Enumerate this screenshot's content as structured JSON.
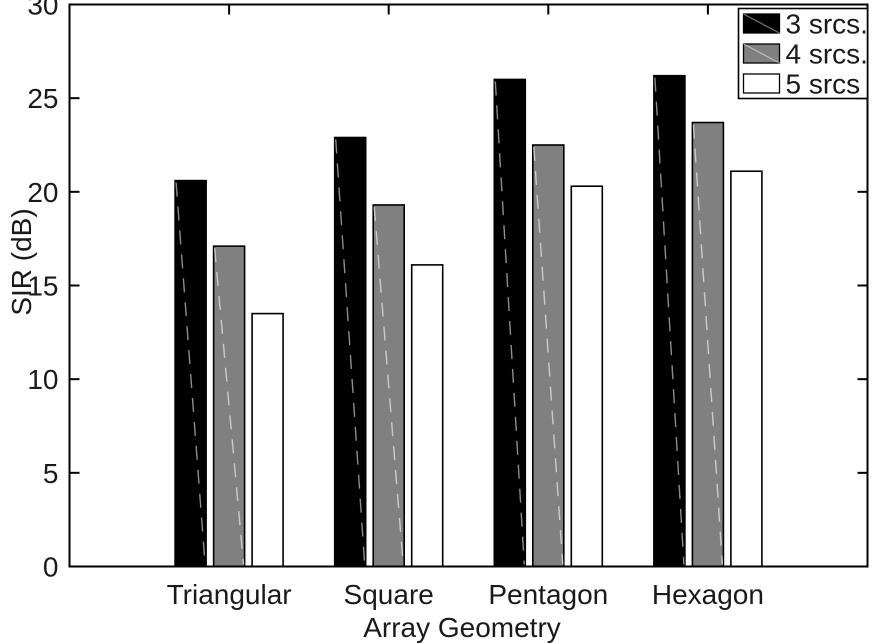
{
  "chart_data": {
    "type": "bar",
    "title": "",
    "xlabel": "Array Geometry",
    "ylabel": "SIR (dB)",
    "categories": [
      "Triangular",
      "Square",
      "Pentagon",
      "Hexagon"
    ],
    "series": [
      {
        "name": "3 srcs.",
        "color": "#000000",
        "seam_color": "#a6a6a6",
        "values": [
          20.6,
          22.9,
          26.0,
          26.2
        ]
      },
      {
        "name": "4 srcs.",
        "color": "#808080",
        "seam_color": "#d9d9d9",
        "values": [
          17.1,
          19.3,
          22.5,
          23.7
        ]
      },
      {
        "name": "5 srcs",
        "color": "#ffffff",
        "seam_color": "",
        "values": [
          13.5,
          16.1,
          20.3,
          21.1
        ]
      }
    ],
    "ylim": [
      0,
      30
    ],
    "yticks": [
      0,
      5,
      10,
      15,
      20,
      25,
      30
    ],
    "grid": false,
    "legend_position": "top-right",
    "axis_color": "#000000",
    "text_color": "#1a1a1a",
    "background": "#ffffff"
  }
}
